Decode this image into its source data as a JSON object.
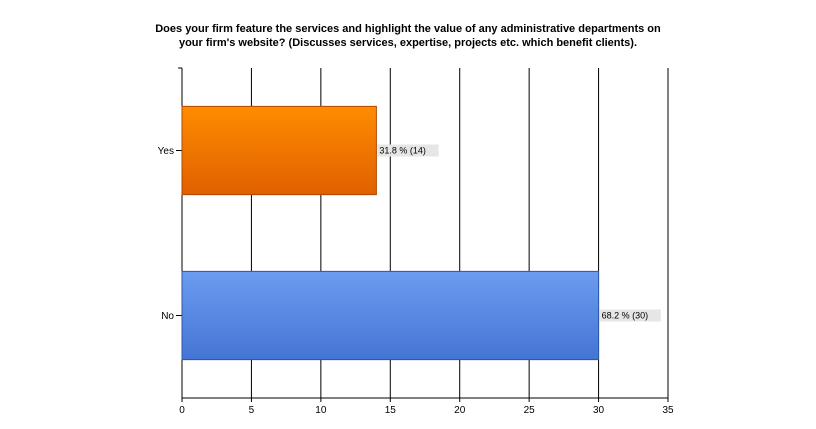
{
  "chart_data": {
    "type": "bar",
    "orientation": "horizontal",
    "title": "Does your firm feature the services and highlight the value of any administrative departments on your firm's website? (Discusses services, expertise, projects etc. which benefit clients).",
    "title_lines": [
      "Does your firm feature the services and highlight the value of any administrative departments on",
      "your firm's website? (Discusses services, expertise, projects etc. which benefit clients)."
    ],
    "categories": [
      "Yes",
      "No"
    ],
    "values": [
      14,
      30
    ],
    "data_labels": [
      "31.8 % (14)",
      "68.2 % (30)"
    ],
    "xlim": [
      0,
      35
    ],
    "xticks": [
      0,
      5,
      10,
      15,
      20,
      25,
      30,
      35
    ],
    "grid": true,
    "legend": "none",
    "colors": {
      "Yes": {
        "top": "#ff8c00",
        "bottom": "#e06000",
        "stroke": "#b04a00"
      },
      "No": {
        "top": "#6b9cf0",
        "bottom": "#4575d4",
        "stroke": "#2d55a8"
      },
      "grid": "#000000",
      "label_bg": "#e6e6e6"
    }
  }
}
